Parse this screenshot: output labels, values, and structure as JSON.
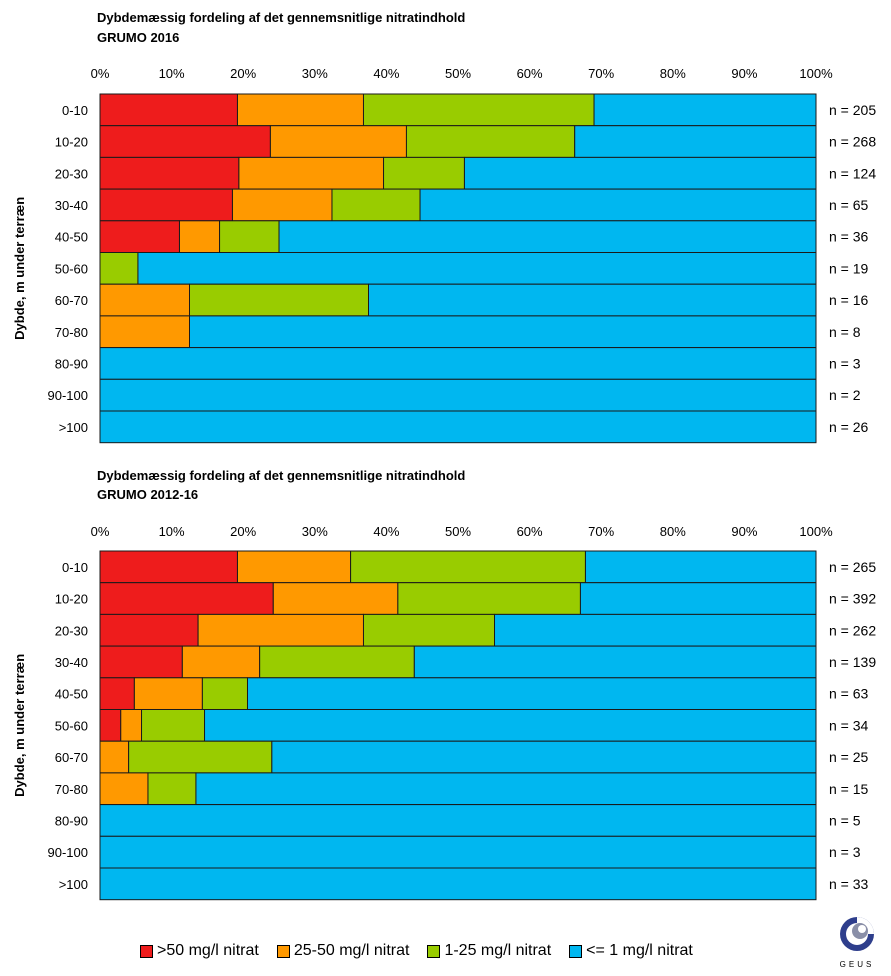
{
  "colors": {
    "gt50": "#ee1c1c",
    "c25_50": "#ff9900",
    "c1_25": "#99cc00",
    "le1": "#00b7f0"
  },
  "legend": [
    {
      "label": ">50 mg/l nitrat",
      "color": "#ee1c1c"
    },
    {
      "label": "25-50 mg/l nitrat",
      "color": "#ff9900"
    },
    {
      "label": "1-25 mg/l nitrat",
      "color": "#99cc00"
    },
    {
      "label": "<= 1 mg/l nitrat",
      "color": "#00b7f0"
    }
  ],
  "logo": {
    "text": "GEUS"
  },
  "chart_data": [
    {
      "type": "bar",
      "orientation": "horizontal-stacked-100",
      "title": "Dybdemæssig fordeling af det gennemsnitlige nitratindhold",
      "subtitle": "GRUMO 2016",
      "ylabel": "Dybde, m under terræn",
      "xlim": [
        0,
        100
      ],
      "xticks": [
        "0%",
        "10%",
        "20%",
        "30%",
        "40%",
        "50%",
        "60%",
        "70%",
        "80%",
        "90%",
        "100%"
      ],
      "categories": [
        "0-10",
        "10-20",
        "20-30",
        "30-40",
        "40-50",
        "50-60",
        "60-70",
        "70-80",
        "80-90",
        "90-100",
        ">100"
      ],
      "n_labels": [
        "n = 205",
        "n = 268",
        "n = 124",
        "n = 65",
        "n = 36",
        "n = 19",
        "n = 16",
        "n = 8",
        "n = 3",
        "n = 2",
        "n = 26"
      ],
      "series": [
        {
          "name": ">50 mg/l nitrat",
          "values": [
            19.2,
            23.8,
            19.4,
            18.5,
            11.1,
            0,
            0,
            0,
            0,
            0,
            0
          ]
        },
        {
          "name": "25-50 mg/l nitrat",
          "values": [
            17.6,
            19.0,
            20.2,
            13.9,
            5.6,
            0,
            12.5,
            12.5,
            0,
            0,
            0
          ]
        },
        {
          "name": "1-25 mg/l nitrat",
          "values": [
            32.2,
            23.5,
            11.3,
            12.3,
            8.3,
            5.3,
            25.0,
            0,
            0,
            0,
            0
          ]
        },
        {
          "name": "<= 1 mg/l nitrat",
          "values": [
            31.0,
            33.7,
            49.1,
            55.3,
            75.0,
            94.7,
            62.5,
            87.5,
            100,
            100,
            100
          ]
        }
      ]
    },
    {
      "type": "bar",
      "orientation": "horizontal-stacked-100",
      "title": "Dybdemæssig fordeling af det gennemsnitlige nitratindhold",
      "subtitle": "GRUMO 2012-16",
      "ylabel": "Dybde, m under terræn",
      "xlim": [
        0,
        100
      ],
      "xticks": [
        "0%",
        "10%",
        "20%",
        "30%",
        "40%",
        "50%",
        "60%",
        "70%",
        "80%",
        "90%",
        "100%"
      ],
      "categories": [
        "0-10",
        "10-20",
        "20-30",
        "30-40",
        "40-50",
        "50-60",
        "60-70",
        "70-80",
        "80-90",
        "90-100",
        ">100"
      ],
      "n_labels": [
        "n = 265",
        "n = 392",
        "n = 262",
        "n = 139",
        "n = 63",
        "n = 34",
        "n = 25",
        "n = 15",
        "n = 5",
        "n = 3",
        "n = 33"
      ],
      "series": [
        {
          "name": ">50 mg/l nitrat",
          "values": [
            19.2,
            24.2,
            13.7,
            11.5,
            4.8,
            2.9,
            0,
            0,
            0,
            0,
            0
          ]
        },
        {
          "name": "25-50 mg/l nitrat",
          "values": [
            15.8,
            17.4,
            23.1,
            10.8,
            9.5,
            2.9,
            4.0,
            6.7,
            0,
            0,
            0
          ]
        },
        {
          "name": "1-25 mg/l nitrat",
          "values": [
            32.8,
            25.5,
            18.3,
            21.6,
            6.3,
            8.8,
            20.0,
            6.7,
            0,
            0,
            0
          ]
        },
        {
          "name": "<= 1 mg/l nitrat",
          "values": [
            32.2,
            32.9,
            44.9,
            56.1,
            79.4,
            85.4,
            76.0,
            86.6,
            100,
            100,
            100
          ]
        }
      ]
    }
  ]
}
